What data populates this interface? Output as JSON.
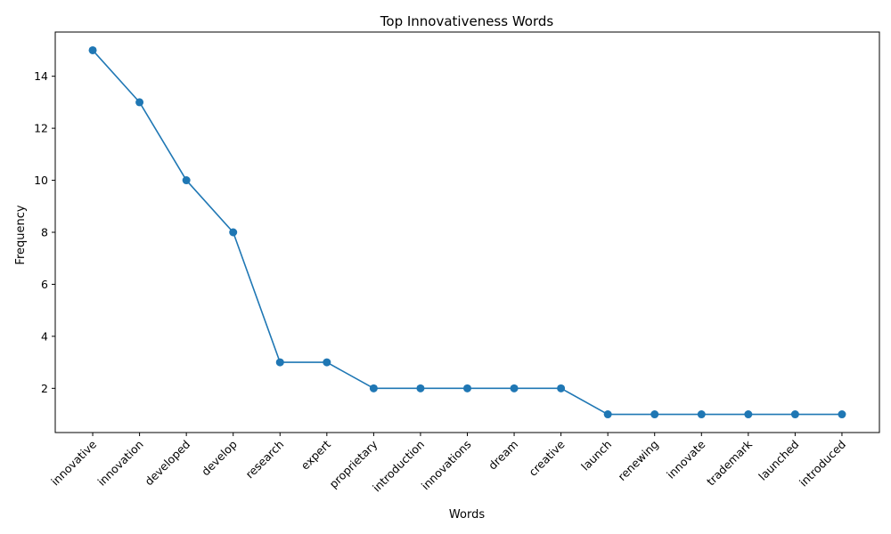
{
  "chart_data": {
    "type": "line",
    "title": "Top Innovativeness Words",
    "xlabel": "Words",
    "ylabel": "Frequency",
    "categories": [
      "innovative",
      "innovation",
      "developed",
      "develop",
      "research",
      "expert",
      "proprietary",
      "introduction",
      "innovations",
      "dream",
      "creative",
      "launch",
      "renewing",
      "innovate",
      "trademark",
      "launched",
      "introduced"
    ],
    "series": [
      {
        "values": [
          15,
          13,
          10,
          8,
          3,
          3,
          2,
          2,
          2,
          2,
          2,
          1,
          1,
          1,
          1,
          1,
          1
        ],
        "color": "#1f77b4"
      }
    ],
    "yticks": [
      "2",
      "4",
      "6",
      "8",
      "10",
      "12",
      "14"
    ],
    "ylim": [
      0.3,
      15.7
    ],
    "grid": false,
    "markers": true
  }
}
